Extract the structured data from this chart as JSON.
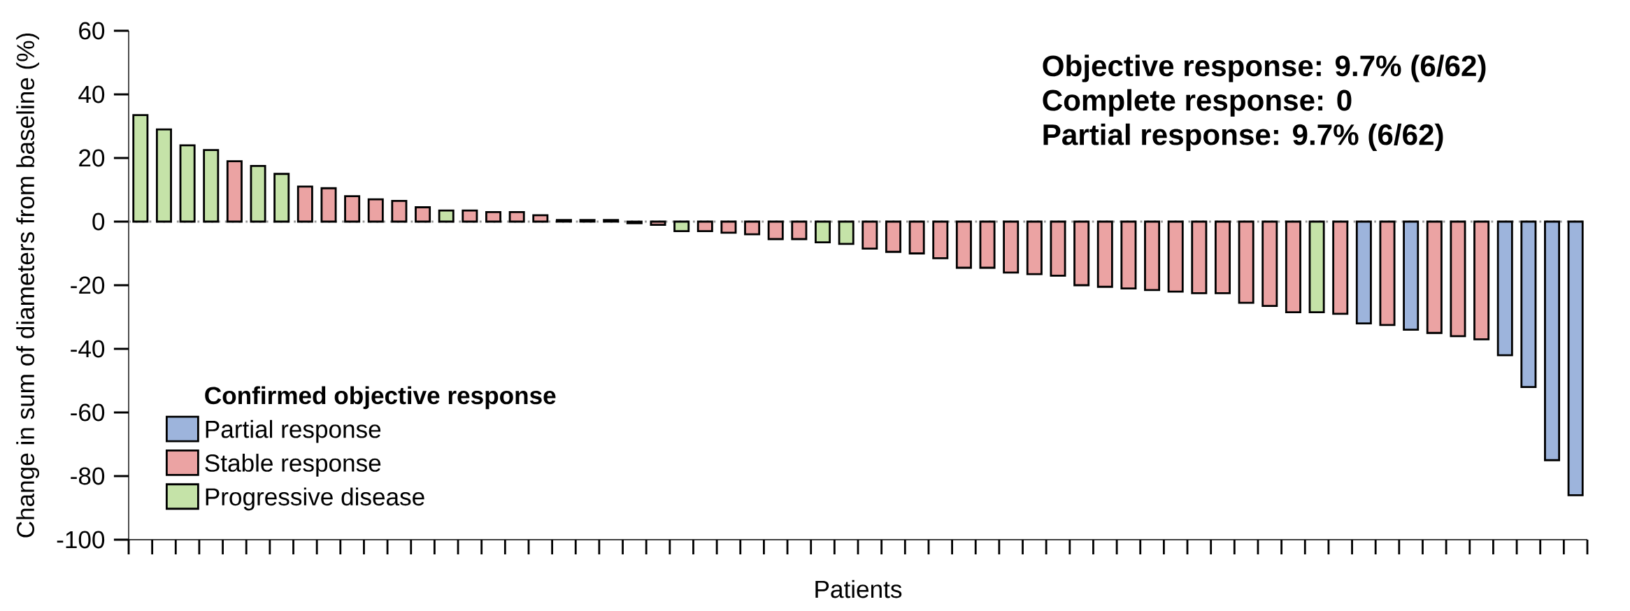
{
  "chart_data": {
    "type": "bar",
    "categories": [
      null,
      null,
      null,
      null,
      null,
      null,
      null,
      null,
      null,
      null,
      null,
      null,
      null,
      null,
      null,
      null,
      null,
      null,
      null,
      null,
      null,
      null,
      null,
      null,
      null,
      null,
      null,
      null,
      null,
      null,
      null,
      null,
      null,
      null,
      null,
      null,
      null,
      null,
      null,
      null,
      null,
      null,
      null,
      null,
      null,
      null,
      null,
      null,
      null,
      null,
      null,
      null,
      null,
      null,
      null,
      null,
      null,
      null,
      null,
      null,
      null,
      null
    ],
    "xlabel": "Patients",
    "ylabel": "Change in sum of diameters from baseline (%)",
    "legend_title": "Confirmed objective response",
    "legend": "bottom left",
    "ylim": [
      -100,
      60
    ],
    "yticks": [
      -100,
      -80,
      -60,
      -40,
      -20,
      0,
      20,
      40,
      60
    ],
    "ref_lines": [
      {
        "axis": "y",
        "value": 0,
        "color": "#999999",
        "line_style": "dotted"
      }
    ],
    "annotations": [
      "Objective response: 9.7% (6/62)",
      "Complete response: 0",
      "Partial response: 9.7% (6/62)"
    ],
    "series": [
      {
        "name": "Partial response",
        "color": "#9db4dc",
        "values": [
          null,
          null,
          null,
          null,
          null,
          null,
          null,
          null,
          null,
          null,
          null,
          null,
          null,
          null,
          null,
          null,
          null,
          null,
          null,
          null,
          null,
          null,
          null,
          null,
          null,
          null,
          null,
          null,
          null,
          null,
          null,
          null,
          null,
          null,
          null,
          null,
          null,
          null,
          null,
          null,
          null,
          null,
          null,
          null,
          null,
          null,
          null,
          null,
          null,
          null,
          null,
          null,
          -32,
          null,
          -34,
          null,
          null,
          null,
          -42,
          -52,
          -75,
          -86
        ]
      },
      {
        "name": "Stable response",
        "color": "#eba3a3",
        "values": [
          null,
          null,
          null,
          null,
          19,
          null,
          null,
          11,
          10.5,
          8,
          7,
          6.5,
          4.5,
          null,
          3.5,
          3,
          3,
          2,
          0.5,
          0.5,
          0.5,
          -0.5,
          -1,
          null,
          -3,
          -3.5,
          -4,
          -5.5,
          -5.5,
          null,
          null,
          -8.5,
          -9.5,
          -10,
          -11.5,
          -14.5,
          -14.5,
          -16,
          -16.5,
          -17,
          -20,
          -20.5,
          -21,
          -21.5,
          -22,
          -22.5,
          -22.5,
          -25.5,
          -26.5,
          -28.5,
          null,
          -29,
          null,
          -32.5,
          null,
          -35,
          -36,
          -37,
          null,
          null,
          null,
          null
        ]
      },
      {
        "name": "Progressive disease",
        "color": "#c5e3a8",
        "values": [
          33.5,
          29,
          24,
          22.5,
          null,
          17.5,
          15,
          null,
          null,
          null,
          null,
          null,
          null,
          3.5,
          null,
          null,
          null,
          null,
          null,
          null,
          null,
          null,
          null,
          -3,
          null,
          null,
          null,
          null,
          null,
          -6.5,
          -7,
          null,
          null,
          null,
          null,
          null,
          null,
          null,
          null,
          null,
          null,
          null,
          null,
          null,
          null,
          null,
          null,
          null,
          null,
          null,
          -28.5,
          null,
          null,
          null,
          null,
          null,
          null,
          null,
          null,
          null,
          null,
          null
        ]
      }
    ]
  }
}
